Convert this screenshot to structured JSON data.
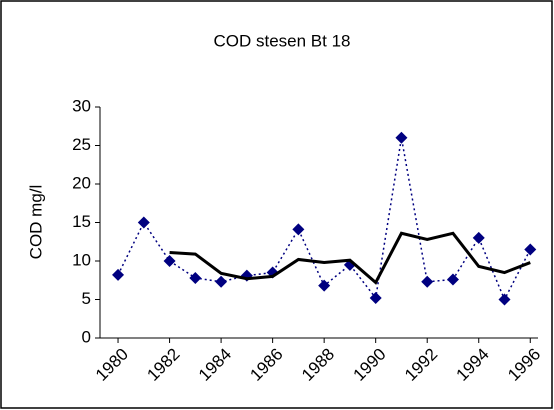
{
  "chart_data": {
    "type": "line",
    "title": "COD stesen Bt 18",
    "y_label": "COD mg/l",
    "x": [
      1980,
      1981,
      1982,
      1983,
      1984,
      1985,
      1986,
      1987,
      1988,
      1989,
      1990,
      1991,
      1992,
      1993,
      1994,
      1995,
      1996
    ],
    "series": [
      {
        "color": "#000080",
        "style": "dotted-diamond",
        "values": [
          8.2,
          15,
          10,
          7.8,
          7.3,
          8.1,
          8.5,
          14.1,
          6.8,
          9.5,
          5.2,
          26,
          7.3,
          7.6,
          13,
          5,
          11.5
        ]
      },
      {
        "color": "#000000",
        "style": "solid",
        "values": [
          null,
          null,
          11.1,
          10.9,
          8.4,
          7.7,
          8.0,
          10.2,
          9.8,
          10.1,
          7.2,
          13.6,
          12.8,
          13.6,
          9.3,
          8.5,
          9.8
        ]
      }
    ],
    "xlim": [
      1979.3,
      1996.3
    ],
    "xticks": [
      1980,
      1982,
      1984,
      1986,
      1988,
      1990,
      1992,
      1994,
      1996
    ],
    "ylim": [
      0,
      30
    ],
    "yticks": [
      0,
      5,
      10,
      15,
      20,
      25,
      30
    ],
    "grid": false
  }
}
